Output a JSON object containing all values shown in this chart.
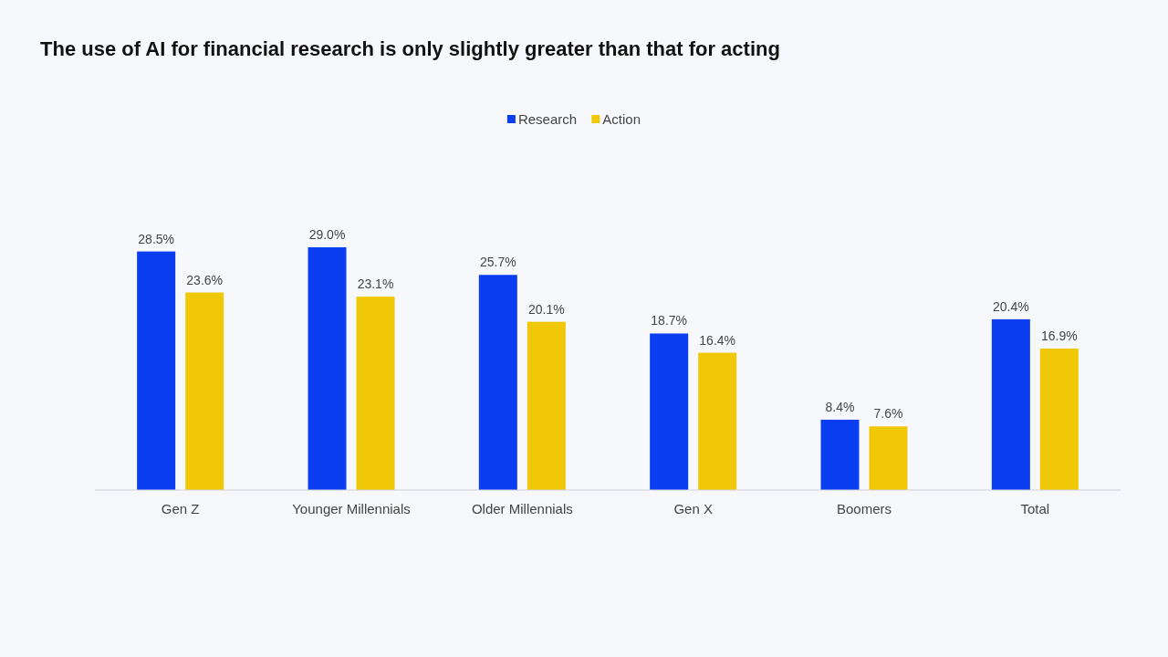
{
  "chart_data": {
    "type": "bar",
    "title": "The use of AI for financial research is only slightly greater than that for acting",
    "categories": [
      "Gen Z",
      "Younger Millennials",
      "Older Millennials",
      "Gen X",
      "Boomers",
      "Total"
    ],
    "series": [
      {
        "name": "Research",
        "color": "#0a3ef0",
        "values": [
          28.5,
          29.0,
          25.7,
          18.7,
          8.4,
          20.4
        ],
        "value_labels": [
          "28.5%",
          "29.0%",
          "25.7%",
          "18.7%",
          "8.4%",
          "20.4%"
        ]
      },
      {
        "name": "Action",
        "color": "#f0c808",
        "values": [
          23.6,
          23.1,
          20.1,
          16.4,
          7.6,
          16.9
        ],
        "value_labels": [
          "23.6%",
          "23.1%",
          "20.1%",
          "16.4%",
          "7.6%",
          "16.9%"
        ]
      }
    ],
    "legend": "top"
  }
}
